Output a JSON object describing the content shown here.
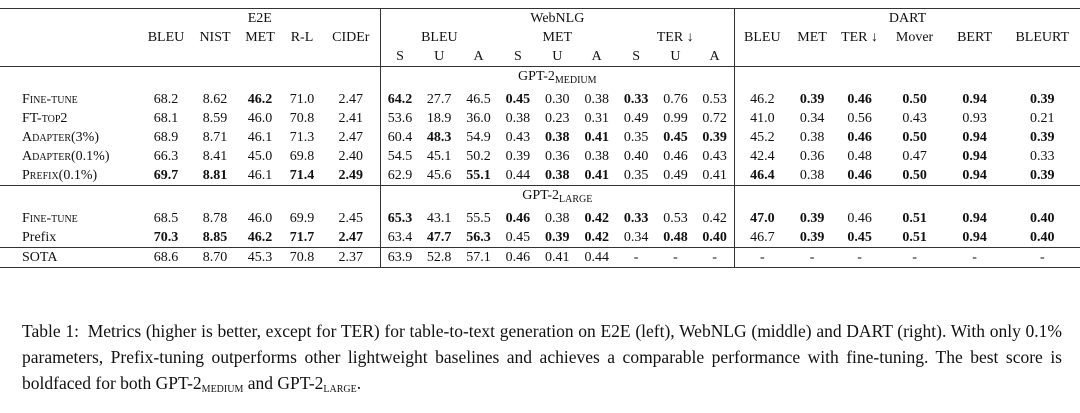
{
  "header": {
    "groups": [
      "E2E",
      "WebNLG",
      "DART"
    ],
    "e2e_metrics": [
      "BLEU",
      "NIST",
      "MET",
      "R-L",
      "CIDEr"
    ],
    "webnlg_metrics": [
      "BLEU",
      "MET",
      "TER ↓"
    ],
    "webnlg_splits": [
      "S",
      "U",
      "A",
      "S",
      "U",
      "A",
      "S",
      "U",
      "A"
    ],
    "dart_metrics": [
      "BLEU",
      "MET",
      "TER ↓",
      "Mover",
      "BERT",
      "BLEURT"
    ]
  },
  "sections": [
    {
      "title": "GPT-2",
      "sub": "MEDIUM",
      "rows": [
        {
          "method": "Fine-tune",
          "small_caps": true,
          "values": [
            "68.2",
            "8.62",
            "46.2",
            "71.0",
            "2.47",
            "64.2",
            "27.7",
            "46.5",
            "0.45",
            "0.30",
            "0.38",
            "0.33",
            "0.76",
            "0.53",
            "46.2",
            "0.39",
            "0.46",
            "0.50",
            "0.94",
            "0.39"
          ],
          "bold": [
            2,
            5,
            8,
            11,
            15,
            16,
            17,
            18,
            19
          ]
        },
        {
          "method": "FT-top2",
          "small_caps": true,
          "values": [
            "68.1",
            "8.59",
            "46.0",
            "70.8",
            "2.41",
            "53.6",
            "18.9",
            "36.0",
            "0.38",
            "0.23",
            "0.31",
            "0.49",
            "0.99",
            "0.72",
            "41.0",
            "0.34",
            "0.56",
            "0.43",
            "0.93",
            "0.21"
          ],
          "bold": []
        },
        {
          "method": "Adapter(3%)",
          "small_caps": true,
          "values": [
            "68.9",
            "8.71",
            "46.1",
            "71.3",
            "2.47",
            "60.4",
            "48.3",
            "54.9",
            "0.43",
            "0.38",
            "0.41",
            "0.35",
            "0.45",
            "0.39",
            "45.2",
            "0.38",
            "0.46",
            "0.50",
            "0.94",
            "0.39"
          ],
          "bold": [
            6,
            9,
            10,
            12,
            13,
            16,
            17,
            18,
            19
          ]
        },
        {
          "method": "Adapter(0.1%)",
          "small_caps": true,
          "values": [
            "66.3",
            "8.41",
            "45.0",
            "69.8",
            "2.40",
            "54.5",
            "45.1",
            "50.2",
            "0.39",
            "0.36",
            "0.38",
            "0.40",
            "0.46",
            "0.43",
            "42.4",
            "0.36",
            "0.48",
            "0.47",
            "0.94",
            "0.33"
          ],
          "bold": [
            18
          ]
        },
        {
          "method": "Prefix(0.1%)",
          "small_caps": true,
          "values": [
            "69.7",
            "8.81",
            "46.1",
            "71.4",
            "2.49",
            "62.9",
            "45.6",
            "55.1",
            "0.44",
            "0.38",
            "0.41",
            "0.35",
            "0.49",
            "0.41",
            "46.4",
            "0.38",
            "0.46",
            "0.50",
            "0.94",
            "0.39"
          ],
          "bold": [
            0,
            1,
            3,
            4,
            7,
            9,
            10,
            14,
            16,
            17,
            18,
            19
          ]
        }
      ]
    },
    {
      "title": "GPT-2",
      "sub": "LARGE",
      "rows": [
        {
          "method": "Fine-tune",
          "small_caps": true,
          "values": [
            "68.5",
            "8.78",
            "46.0",
            "69.9",
            "2.45",
            "65.3",
            "43.1",
            "55.5",
            "0.46",
            "0.38",
            "0.42",
            "0.33",
            "0.53",
            "0.42",
            "47.0",
            "0.39",
            "0.46",
            "0.51",
            "0.94",
            "0.40"
          ],
          "bold": [
            5,
            8,
            10,
            11,
            14,
            15,
            17,
            18,
            19
          ]
        },
        {
          "method": "Prefix",
          "small_caps": false,
          "values": [
            "70.3",
            "8.85",
            "46.2",
            "71.7",
            "2.47",
            "63.4",
            "47.7",
            "56.3",
            "0.45",
            "0.39",
            "0.42",
            "0.34",
            "0.48",
            "0.40",
            "46.7",
            "0.39",
            "0.45",
            "0.51",
            "0.94",
            "0.40"
          ],
          "bold": [
            0,
            1,
            2,
            3,
            4,
            6,
            7,
            9,
            10,
            12,
            13,
            15,
            16,
            17,
            18,
            19
          ]
        }
      ]
    },
    {
      "rows": [
        {
          "method": "SOTA",
          "small_caps": false,
          "values": [
            "68.6",
            "8.70",
            "45.3",
            "70.8",
            "2.37",
            "63.9",
            "52.8",
            "57.1",
            "0.46",
            "0.41",
            "0.44",
            "-",
            "-",
            "-",
            "-",
            "-",
            "-",
            "-",
            "-",
            "-"
          ],
          "bold": []
        }
      ]
    }
  ],
  "caption": {
    "label": "Table 1:",
    "parts": [
      {
        "text": "Metrics (higher is better, except for TER) for table-to-text generation on E2E (left), WebNLG (middle) and DART (right). With only 0.1% parameters, Prefix-tuning outperforms other lightweight baselines and achieves a comparable performance with fine-tuning. The best score is boldfaced for both GPT-2"
      },
      {
        "sub": "MEDIUM"
      },
      {
        "text": " and GPT-2"
      },
      {
        "sub": "LARGE"
      },
      {
        "text": "."
      }
    ]
  }
}
